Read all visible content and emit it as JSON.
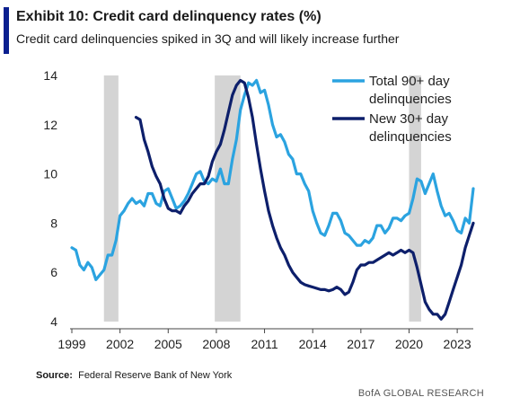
{
  "header": {
    "title": "Exhibit 10: Credit card delinquency rates (%)",
    "subtitle": "Credit card delinquencies spiked in 3Q and will likely increase further"
  },
  "footer": {
    "source_label": "Source:",
    "source_text": "Federal Reserve Bank of New York",
    "brand": "BofA GLOBAL RESEARCH"
  },
  "colors": {
    "total90": "#2ba3e0",
    "new30": "#0d1f6b",
    "recession": "#d4d4d4",
    "accent": "#0a1f8f"
  },
  "chart_data": {
    "type": "line",
    "ylim": [
      4,
      14
    ],
    "yticks": [
      "4",
      "6",
      "8",
      "10",
      "12",
      "14"
    ],
    "xlim": [
      1999,
      2024
    ],
    "xticks": [
      "1999",
      "2002",
      "2005",
      "2008",
      "2011",
      "2014",
      "2017",
      "2020",
      "2023"
    ],
    "grid": false,
    "legend_position": "top-right",
    "recessions": [
      [
        2001.0,
        2001.9
      ],
      [
        2007.9,
        2009.5
      ],
      [
        2020.0,
        2020.75
      ]
    ],
    "series": [
      {
        "name": "Total 90+ day delinquencies",
        "color": "#2ba3e0",
        "points": [
          [
            1999.0,
            7.0
          ],
          [
            1999.25,
            6.9
          ],
          [
            1999.5,
            6.3
          ],
          [
            1999.75,
            6.1
          ],
          [
            2000.0,
            6.4
          ],
          [
            2000.25,
            6.2
          ],
          [
            2000.5,
            5.7
          ],
          [
            2000.75,
            5.9
          ],
          [
            2001.0,
            6.1
          ],
          [
            2001.25,
            6.7
          ],
          [
            2001.5,
            6.7
          ],
          [
            2001.75,
            7.3
          ],
          [
            2002.0,
            8.3
          ],
          [
            2002.25,
            8.5
          ],
          [
            2002.5,
            8.8
          ],
          [
            2002.75,
            9.0
          ],
          [
            2003.0,
            8.8
          ],
          [
            2003.25,
            8.9
          ],
          [
            2003.5,
            8.7
          ],
          [
            2003.75,
            9.2
          ],
          [
            2004.0,
            9.2
          ],
          [
            2004.25,
            8.8
          ],
          [
            2004.5,
            8.7
          ],
          [
            2004.75,
            9.3
          ],
          [
            2005.0,
            9.4
          ],
          [
            2005.25,
            9.0
          ],
          [
            2005.5,
            8.6
          ],
          [
            2005.75,
            8.7
          ],
          [
            2006.0,
            8.9
          ],
          [
            2006.25,
            9.2
          ],
          [
            2006.5,
            9.6
          ],
          [
            2006.75,
            10.0
          ],
          [
            2007.0,
            10.1
          ],
          [
            2007.25,
            9.7
          ],
          [
            2007.5,
            9.6
          ],
          [
            2007.75,
            9.8
          ],
          [
            2008.0,
            9.7
          ],
          [
            2008.25,
            10.2
          ],
          [
            2008.5,
            9.6
          ],
          [
            2008.75,
            9.6
          ],
          [
            2009.0,
            10.6
          ],
          [
            2009.25,
            11.4
          ],
          [
            2009.5,
            12.6
          ],
          [
            2009.75,
            13.2
          ],
          [
            2010.0,
            13.7
          ],
          [
            2010.25,
            13.6
          ],
          [
            2010.5,
            13.8
          ],
          [
            2010.75,
            13.3
          ],
          [
            2011.0,
            13.4
          ],
          [
            2011.25,
            12.8
          ],
          [
            2011.5,
            12.0
          ],
          [
            2011.75,
            11.5
          ],
          [
            2012.0,
            11.6
          ],
          [
            2012.25,
            11.3
          ],
          [
            2012.5,
            10.8
          ],
          [
            2012.75,
            10.6
          ],
          [
            2013.0,
            10.0
          ],
          [
            2013.25,
            10.0
          ],
          [
            2013.5,
            9.6
          ],
          [
            2013.75,
            9.3
          ],
          [
            2014.0,
            8.5
          ],
          [
            2014.25,
            8.0
          ],
          [
            2014.5,
            7.6
          ],
          [
            2014.75,
            7.5
          ],
          [
            2015.0,
            7.9
          ],
          [
            2015.25,
            8.4
          ],
          [
            2015.5,
            8.4
          ],
          [
            2015.75,
            8.1
          ],
          [
            2016.0,
            7.6
          ],
          [
            2016.25,
            7.5
          ],
          [
            2016.5,
            7.3
          ],
          [
            2016.75,
            7.1
          ],
          [
            2017.0,
            7.1
          ],
          [
            2017.25,
            7.3
          ],
          [
            2017.5,
            7.2
          ],
          [
            2017.75,
            7.4
          ],
          [
            2018.0,
            7.9
          ],
          [
            2018.25,
            7.9
          ],
          [
            2018.5,
            7.6
          ],
          [
            2018.75,
            7.8
          ],
          [
            2019.0,
            8.2
          ],
          [
            2019.25,
            8.2
          ],
          [
            2019.5,
            8.1
          ],
          [
            2019.75,
            8.3
          ],
          [
            2020.0,
            8.4
          ],
          [
            2020.25,
            9.0
          ],
          [
            2020.5,
            9.8
          ],
          [
            2020.75,
            9.7
          ],
          [
            2021.0,
            9.2
          ],
          [
            2021.25,
            9.6
          ],
          [
            2021.5,
            10.0
          ],
          [
            2021.75,
            9.3
          ],
          [
            2022.0,
            8.7
          ],
          [
            2022.25,
            8.3
          ],
          [
            2022.5,
            8.4
          ],
          [
            2022.75,
            8.1
          ],
          [
            2023.0,
            7.7
          ],
          [
            2023.25,
            7.6
          ],
          [
            2023.5,
            8.2
          ],
          [
            2023.75,
            8.0
          ],
          [
            2024.0,
            9.4
          ]
        ]
      },
      {
        "name": "New 30+ day delinquencies",
        "color": "#0d1f6b",
        "points": [
          [
            2003.0,
            12.3
          ],
          [
            2003.25,
            12.2
          ],
          [
            2003.5,
            11.4
          ],
          [
            2003.75,
            10.9
          ],
          [
            2004.0,
            10.3
          ],
          [
            2004.25,
            9.9
          ],
          [
            2004.5,
            9.6
          ],
          [
            2004.75,
            9.0
          ],
          [
            2005.0,
            8.6
          ],
          [
            2005.25,
            8.5
          ],
          [
            2005.5,
            8.5
          ],
          [
            2005.75,
            8.4
          ],
          [
            2006.0,
            8.7
          ],
          [
            2006.25,
            8.9
          ],
          [
            2006.5,
            9.2
          ],
          [
            2006.75,
            9.4
          ],
          [
            2007.0,
            9.6
          ],
          [
            2007.25,
            9.6
          ],
          [
            2007.5,
            9.9
          ],
          [
            2007.75,
            10.5
          ],
          [
            2008.0,
            10.9
          ],
          [
            2008.25,
            11.2
          ],
          [
            2008.5,
            11.8
          ],
          [
            2008.75,
            12.5
          ],
          [
            2009.0,
            13.2
          ],
          [
            2009.25,
            13.6
          ],
          [
            2009.5,
            13.8
          ],
          [
            2009.75,
            13.7
          ],
          [
            2010.0,
            13.1
          ],
          [
            2010.25,
            12.3
          ],
          [
            2010.5,
            11.2
          ],
          [
            2010.75,
            10.2
          ],
          [
            2011.0,
            9.3
          ],
          [
            2011.25,
            8.5
          ],
          [
            2011.5,
            7.9
          ],
          [
            2011.75,
            7.4
          ],
          [
            2012.0,
            7.0
          ],
          [
            2012.25,
            6.7
          ],
          [
            2012.5,
            6.3
          ],
          [
            2012.75,
            6.0
          ],
          [
            2013.0,
            5.8
          ],
          [
            2013.25,
            5.6
          ],
          [
            2013.5,
            5.5
          ],
          [
            2013.75,
            5.45
          ],
          [
            2014.0,
            5.4
          ],
          [
            2014.25,
            5.35
          ],
          [
            2014.5,
            5.3
          ],
          [
            2014.75,
            5.3
          ],
          [
            2015.0,
            5.25
          ],
          [
            2015.25,
            5.3
          ],
          [
            2015.5,
            5.4
          ],
          [
            2015.75,
            5.3
          ],
          [
            2016.0,
            5.1
          ],
          [
            2016.25,
            5.2
          ],
          [
            2016.5,
            5.6
          ],
          [
            2016.75,
            6.1
          ],
          [
            2017.0,
            6.3
          ],
          [
            2017.25,
            6.3
          ],
          [
            2017.5,
            6.4
          ],
          [
            2017.75,
            6.4
          ],
          [
            2018.0,
            6.5
          ],
          [
            2018.25,
            6.6
          ],
          [
            2018.5,
            6.7
          ],
          [
            2018.75,
            6.8
          ],
          [
            2019.0,
            6.7
          ],
          [
            2019.25,
            6.8
          ],
          [
            2019.5,
            6.9
          ],
          [
            2019.75,
            6.8
          ],
          [
            2020.0,
            6.9
          ],
          [
            2020.25,
            6.8
          ],
          [
            2020.5,
            6.2
          ],
          [
            2020.75,
            5.5
          ],
          [
            2021.0,
            4.8
          ],
          [
            2021.25,
            4.5
          ],
          [
            2021.5,
            4.3
          ],
          [
            2021.75,
            4.3
          ],
          [
            2022.0,
            4.1
          ],
          [
            2022.25,
            4.3
          ],
          [
            2022.5,
            4.8
          ],
          [
            2022.75,
            5.3
          ],
          [
            2023.0,
            5.8
          ],
          [
            2023.25,
            6.3
          ],
          [
            2023.5,
            7.0
          ],
          [
            2023.75,
            7.5
          ],
          [
            2024.0,
            8.0
          ]
        ]
      }
    ]
  }
}
